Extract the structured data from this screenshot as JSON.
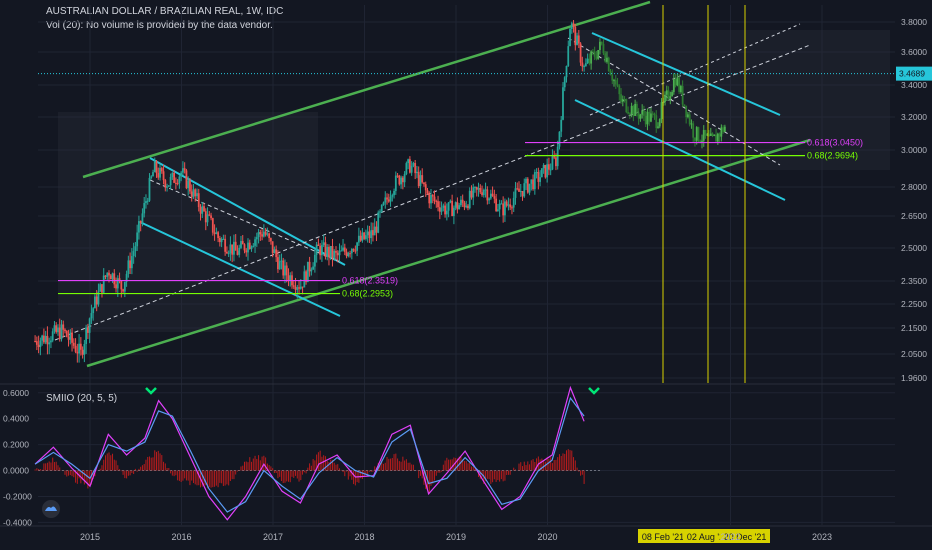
{
  "header": {
    "symbol_line": "AUSTRALIAN DOLLAR / BRAZILIAN REAL, 1W, IDC",
    "volume_note": "Vol (20): No volume is provided by the data vendor."
  },
  "chart_data": [
    {
      "type": "candlestick",
      "title": "AUSTRALIAN DOLLAR / BRAZILIAN REAL, 1W, IDC",
      "y_ticks": [
        "3.8000",
        "3.6000",
        "3.4000",
        "3.2000",
        "3.0000",
        "2.8000",
        "2.6500",
        "2.5000",
        "2.3500",
        "2.2500",
        "2.1500",
        "2.0500",
        "1.9600"
      ],
      "x_ticks": [
        "2015",
        "2016",
        "2017",
        "2018",
        "2019",
        "2020",
        "2022",
        "2023"
      ],
      "last_price": "3.4689",
      "price_path": [
        {
          "x": 2014.4,
          "y": 2.1
        },
        {
          "x": 2014.7,
          "y": 2.14
        },
        {
          "x": 2014.9,
          "y": 2.05
        },
        {
          "x": 2015.0,
          "y": 2.2
        },
        {
          "x": 2015.2,
          "y": 2.4
        },
        {
          "x": 2015.35,
          "y": 2.32
        },
        {
          "x": 2015.5,
          "y": 2.52
        },
        {
          "x": 2015.7,
          "y": 2.9
        },
        {
          "x": 2015.85,
          "y": 2.82
        },
        {
          "x": 2016.0,
          "y": 2.88
        },
        {
          "x": 2016.2,
          "y": 2.7
        },
        {
          "x": 2016.4,
          "y": 2.55
        },
        {
          "x": 2016.6,
          "y": 2.48
        },
        {
          "x": 2016.9,
          "y": 2.58
        },
        {
          "x": 2017.1,
          "y": 2.4
        },
        {
          "x": 2017.3,
          "y": 2.33
        },
        {
          "x": 2017.5,
          "y": 2.5
        },
        {
          "x": 2017.7,
          "y": 2.46
        },
        {
          "x": 2017.9,
          "y": 2.52
        },
        {
          "x": 2018.1,
          "y": 2.57
        },
        {
          "x": 2018.3,
          "y": 2.8
        },
        {
          "x": 2018.5,
          "y": 2.92
        },
        {
          "x": 2018.7,
          "y": 2.75
        },
        {
          "x": 2018.9,
          "y": 2.68
        },
        {
          "x": 2019.1,
          "y": 2.72
        },
        {
          "x": 2019.3,
          "y": 2.8
        },
        {
          "x": 2019.5,
          "y": 2.68
        },
        {
          "x": 2019.7,
          "y": 2.78
        },
        {
          "x": 2019.9,
          "y": 2.85
        },
        {
          "x": 2020.1,
          "y": 2.95
        },
        {
          "x": 2020.25,
          "y": 3.8
        },
        {
          "x": 2020.4,
          "y": 3.5
        },
        {
          "x": 2020.6,
          "y": 3.65
        },
        {
          "x": 2020.8,
          "y": 3.3
        },
        {
          "x": 2021.0,
          "y": 3.22
        },
        {
          "x": 2021.2,
          "y": 3.18
        },
        {
          "x": 2021.4,
          "y": 3.45
        },
        {
          "x": 2021.6,
          "y": 3.1
        },
        {
          "x": 2021.8,
          "y": 3.05
        },
        {
          "x": 2021.95,
          "y": 3.15
        }
      ],
      "fib_levels": [
        {
          "label": "0.618(2.3519)",
          "color": "#e040fb"
        },
        {
          "label": "0.68(2.2953)",
          "color": "#76ff03"
        },
        {
          "label": "0.618(3.0450)",
          "color": "#e040fb"
        },
        {
          "label": "0.68(2.9694)",
          "color": "#76ff03"
        }
      ],
      "time_markers": [
        "08 Feb '21",
        "02 Aug '21",
        "20 Dec '21"
      ]
    },
    {
      "type": "line",
      "title": "SMIIO (20, 5, 5)",
      "y_ticks": [
        "0.6000",
        "0.4000",
        "0.2000",
        "0.0000",
        "-0.2000",
        "-0.4000"
      ],
      "ylim": [
        -0.42,
        0.66
      ],
      "series": [
        {
          "name": "SMI",
          "color": "#e040fb",
          "values": [
            {
              "x": 2014.4,
              "y": 0.05
            },
            {
              "x": 2014.6,
              "y": 0.18
            },
            {
              "x": 2014.8,
              "y": 0.02
            },
            {
              "x": 2015.0,
              "y": -0.12
            },
            {
              "x": 2015.2,
              "y": 0.28
            },
            {
              "x": 2015.4,
              "y": 0.12
            },
            {
              "x": 2015.6,
              "y": 0.25
            },
            {
              "x": 2015.75,
              "y": 0.54
            },
            {
              "x": 2015.9,
              "y": 0.4
            },
            {
              "x": 2016.1,
              "y": 0.1
            },
            {
              "x": 2016.3,
              "y": -0.2
            },
            {
              "x": 2016.5,
              "y": -0.38
            },
            {
              "x": 2016.7,
              "y": -0.2
            },
            {
              "x": 2016.9,
              "y": 0.05
            },
            {
              "x": 2017.1,
              "y": -0.16
            },
            {
              "x": 2017.3,
              "y": -0.25
            },
            {
              "x": 2017.5,
              "y": 0.05
            },
            {
              "x": 2017.7,
              "y": 0.12
            },
            {
              "x": 2017.9,
              "y": -0.05
            },
            {
              "x": 2018.1,
              "y": -0.04
            },
            {
              "x": 2018.3,
              "y": 0.28
            },
            {
              "x": 2018.5,
              "y": 0.35
            },
            {
              "x": 2018.7,
              "y": -0.18
            },
            {
              "x": 2018.9,
              "y": -0.02
            },
            {
              "x": 2019.1,
              "y": 0.15
            },
            {
              "x": 2019.3,
              "y": -0.08
            },
            {
              "x": 2019.5,
              "y": -0.3
            },
            {
              "x": 2019.7,
              "y": -0.2
            },
            {
              "x": 2019.9,
              "y": 0.05
            },
            {
              "x": 2020.05,
              "y": 0.12
            },
            {
              "x": 2020.25,
              "y": 0.64
            },
            {
              "x": 2020.4,
              "y": 0.38
            }
          ]
        },
        {
          "name": "Signal",
          "color": "#5b9cf6",
          "values": [
            {
              "x": 2014.4,
              "y": 0.05
            },
            {
              "x": 2014.6,
              "y": 0.14
            },
            {
              "x": 2014.8,
              "y": 0.05
            },
            {
              "x": 2015.0,
              "y": -0.06
            },
            {
              "x": 2015.2,
              "y": 0.2
            },
            {
              "x": 2015.4,
              "y": 0.15
            },
            {
              "x": 2015.6,
              "y": 0.22
            },
            {
              "x": 2015.75,
              "y": 0.46
            },
            {
              "x": 2015.9,
              "y": 0.42
            },
            {
              "x": 2016.1,
              "y": 0.15
            },
            {
              "x": 2016.3,
              "y": -0.14
            },
            {
              "x": 2016.5,
              "y": -0.32
            },
            {
              "x": 2016.7,
              "y": -0.24
            },
            {
              "x": 2016.9,
              "y": 0.0
            },
            {
              "x": 2017.1,
              "y": -0.12
            },
            {
              "x": 2017.3,
              "y": -0.22
            },
            {
              "x": 2017.5,
              "y": -0.02
            },
            {
              "x": 2017.7,
              "y": 0.1
            },
            {
              "x": 2017.9,
              "y": 0.0
            },
            {
              "x": 2018.1,
              "y": -0.05
            },
            {
              "x": 2018.3,
              "y": 0.22
            },
            {
              "x": 2018.5,
              "y": 0.32
            },
            {
              "x": 2018.7,
              "y": -0.1
            },
            {
              "x": 2018.9,
              "y": -0.06
            },
            {
              "x": 2019.1,
              "y": 0.1
            },
            {
              "x": 2019.3,
              "y": -0.04
            },
            {
              "x": 2019.5,
              "y": -0.26
            },
            {
              "x": 2019.7,
              "y": -0.22
            },
            {
              "x": 2019.9,
              "y": 0.0
            },
            {
              "x": 2020.05,
              "y": 0.08
            },
            {
              "x": 2020.25,
              "y": 0.56
            },
            {
              "x": 2020.4,
              "y": 0.42
            }
          ]
        }
      ]
    }
  ],
  "colors": {
    "background": "#131722",
    "up_candle": "#26a69a",
    "down_candle": "#ef5350",
    "channel": "#4caf50",
    "channel_light": "#26c6da",
    "marker": "#d7d200"
  }
}
